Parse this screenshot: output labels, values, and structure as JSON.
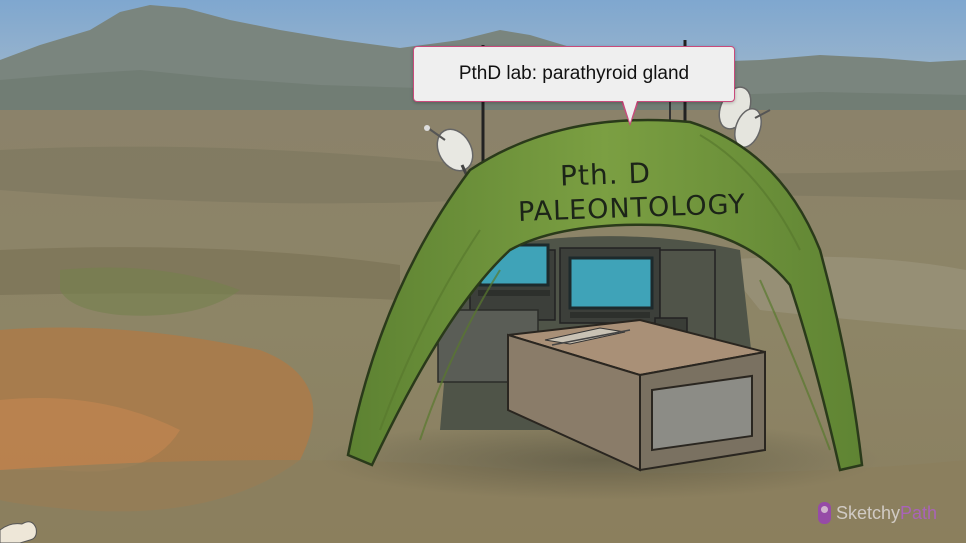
{
  "tooltip": {
    "text": "PthD lab: parathyroid gland"
  },
  "sign": {
    "line1": "Pth. D",
    "line2": "PALEONTOLOGY"
  },
  "watermark": {
    "brand_part1": "Sketchy",
    "brand_part2": "Path",
    "icon": "microphone-icon"
  },
  "colors": {
    "sky": "#8aaccc",
    "mountains": "#7d8880",
    "ground": "#8c8567",
    "ground_orange": "#b07a45",
    "tent": "#6c8f3a",
    "tooltip_border": "#c94a7b",
    "screen": "#3fa3b8"
  }
}
